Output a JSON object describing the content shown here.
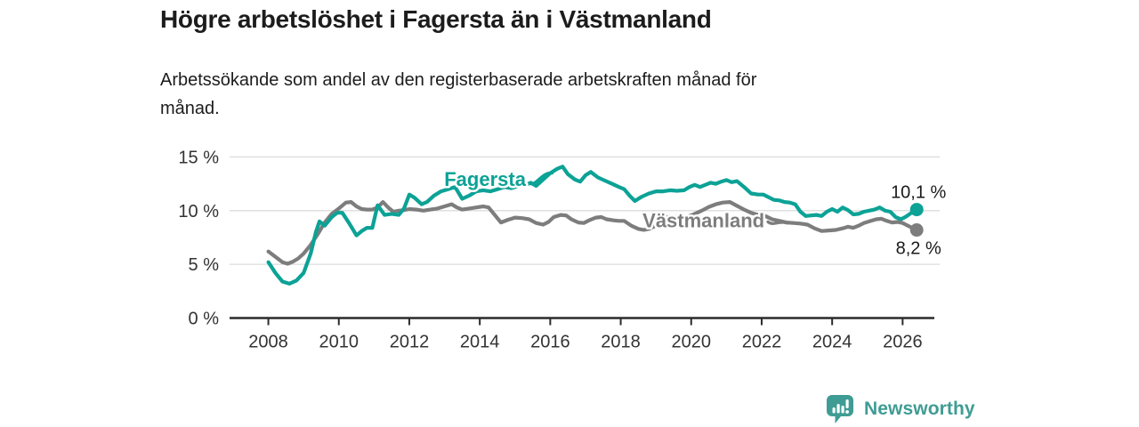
{
  "header": {
    "title": "Högre arbetslöshet i Fagersta än i Västmanland",
    "subtitle": "Arbetssökande som andel av den registerbaserade arbetskraften månad för månad.",
    "subtitle_lines": [
      "Arbetssökande som andel av den registerbaserade arbetskraften månad för",
      "månad."
    ]
  },
  "footer": {
    "brand": "Newsworthy",
    "brand_color": "#3f9c94",
    "logo_icon": "bar-chart-speech-bubble-icon"
  },
  "colors": {
    "fagersta": "#0ca296",
    "vastmanland": "#7d7d7d",
    "grid": "#dcdcdc",
    "axis": "#2b2b2b",
    "tick_text": "#333333",
    "end_label_text": "#1a1a1a",
    "background": "#ffffff"
  },
  "chart_data": {
    "type": "line",
    "title": "Högre arbetslöshet i Fagersta än i Västmanland",
    "subtitle": "Arbetssökande som andel av den registerbaserade arbetskraften månad för månad.",
    "xlabel": "",
    "ylabel": "",
    "unit": "%",
    "grid": "horizontal",
    "legend_position": "inline-labels",
    "xlim": [
      2006.9,
      2026.9
    ],
    "ylim": [
      0,
      15
    ],
    "x_ticks": [
      2008,
      2010,
      2012,
      2014,
      2016,
      2018,
      2020,
      2022,
      2024,
      2026
    ],
    "y_ticks": [
      {
        "value": 0,
        "label": "0 %"
      },
      {
        "value": 5,
        "label": "5 %"
      },
      {
        "value": 10,
        "label": "10 %"
      },
      {
        "value": 15,
        "label": "15 %"
      }
    ],
    "series": [
      {
        "name": "Västmanland",
        "color": "#7d7d7d",
        "end_value": 8.2,
        "end_label": "8,2 %",
        "end_label_side": "below",
        "inline_label": {
          "x": 2020.35,
          "y": 9.1
        },
        "connector": {
          "from": [
            2022.18,
            8.95
          ],
          "c1": [
            2022.33,
            8.55
          ],
          "c2": [
            2022.5,
            9.1
          ],
          "to": [
            2022.72,
            8.85
          ]
        },
        "points": [
          [
            2008.0,
            6.2
          ],
          [
            2008.2,
            5.7
          ],
          [
            2008.4,
            5.2
          ],
          [
            2008.55,
            5.05
          ],
          [
            2008.7,
            5.25
          ],
          [
            2008.85,
            5.55
          ],
          [
            2009.0,
            6.0
          ],
          [
            2009.2,
            6.8
          ],
          [
            2009.4,
            7.8
          ],
          [
            2009.6,
            8.9
          ],
          [
            2009.8,
            9.7
          ],
          [
            2010.0,
            10.2
          ],
          [
            2010.2,
            10.75
          ],
          [
            2010.35,
            10.8
          ],
          [
            2010.5,
            10.4
          ],
          [
            2010.65,
            10.15
          ],
          [
            2010.8,
            10.1
          ],
          [
            2010.95,
            10.1
          ],
          [
            2011.1,
            10.3
          ],
          [
            2011.25,
            10.8
          ],
          [
            2011.4,
            10.3
          ],
          [
            2011.55,
            9.9
          ],
          [
            2011.7,
            10.0
          ],
          [
            2011.85,
            10.05
          ],
          [
            2012.0,
            10.15
          ],
          [
            2012.2,
            10.1
          ],
          [
            2012.4,
            10.0
          ],
          [
            2012.6,
            10.1
          ],
          [
            2012.8,
            10.2
          ],
          [
            2013.0,
            10.4
          ],
          [
            2013.2,
            10.6
          ],
          [
            2013.35,
            10.3
          ],
          [
            2013.5,
            10.1
          ],
          [
            2013.7,
            10.2
          ],
          [
            2013.9,
            10.3
          ],
          [
            2014.1,
            10.4
          ],
          [
            2014.25,
            10.3
          ],
          [
            2014.4,
            9.7
          ],
          [
            2014.6,
            8.9
          ],
          [
            2014.8,
            9.15
          ],
          [
            2015.0,
            9.35
          ],
          [
            2015.2,
            9.3
          ],
          [
            2015.4,
            9.2
          ],
          [
            2015.6,
            8.85
          ],
          [
            2015.8,
            8.7
          ],
          [
            2015.95,
            8.95
          ],
          [
            2016.1,
            9.4
          ],
          [
            2016.3,
            9.6
          ],
          [
            2016.45,
            9.55
          ],
          [
            2016.6,
            9.2
          ],
          [
            2016.8,
            8.9
          ],
          [
            2016.95,
            8.85
          ],
          [
            2017.1,
            9.1
          ],
          [
            2017.3,
            9.35
          ],
          [
            2017.45,
            9.4
          ],
          [
            2017.6,
            9.2
          ],
          [
            2017.8,
            9.1
          ],
          [
            2017.95,
            9.05
          ],
          [
            2018.1,
            9.05
          ],
          [
            2018.3,
            8.6
          ],
          [
            2018.5,
            8.3
          ],
          [
            2018.65,
            8.2
          ],
          [
            2018.8,
            8.3
          ],
          [
            2019.0,
            8.6
          ],
          [
            2019.2,
            9.3
          ],
          [
            2019.4,
            9.45
          ],
          [
            2019.6,
            9.4
          ],
          [
            2019.8,
            9.4
          ],
          [
            2019.95,
            9.5
          ],
          [
            2020.1,
            9.7
          ],
          [
            2020.3,
            10.0
          ],
          [
            2020.5,
            10.35
          ],
          [
            2020.7,
            10.6
          ],
          [
            2020.9,
            10.75
          ],
          [
            2021.1,
            10.8
          ],
          [
            2021.3,
            10.45
          ],
          [
            2021.5,
            10.1
          ],
          [
            2021.7,
            9.8
          ],
          [
            2021.9,
            9.6
          ],
          [
            2022.1,
            9.5
          ],
          [
            2022.3,
            9.2
          ],
          [
            2022.5,
            9.05
          ],
          [
            2022.7,
            8.9
          ],
          [
            2022.9,
            8.85
          ],
          [
            2023.1,
            8.8
          ],
          [
            2023.3,
            8.7
          ],
          [
            2023.5,
            8.35
          ],
          [
            2023.7,
            8.1
          ],
          [
            2023.9,
            8.15
          ],
          [
            2024.1,
            8.2
          ],
          [
            2024.3,
            8.35
          ],
          [
            2024.45,
            8.5
          ],
          [
            2024.6,
            8.4
          ],
          [
            2024.75,
            8.6
          ],
          [
            2024.9,
            8.85
          ],
          [
            2025.1,
            9.05
          ],
          [
            2025.25,
            9.2
          ],
          [
            2025.4,
            9.25
          ],
          [
            2025.55,
            9.05
          ],
          [
            2025.7,
            8.9
          ],
          [
            2025.85,
            8.95
          ],
          [
            2026.0,
            8.85
          ],
          [
            2026.15,
            8.6
          ],
          [
            2026.4,
            8.2
          ]
        ]
      },
      {
        "name": "Fagersta",
        "color": "#0ca296",
        "end_value": 10.1,
        "end_label": "10,1 %",
        "end_label_side": "above",
        "inline_label": {
          "x": 2014.15,
          "y": 12.95
        },
        "connector": {
          "from": [
            2015.4,
            12.55
          ],
          "c1": [
            2015.6,
            12.2
          ],
          "c2": [
            2015.75,
            13.6
          ],
          "to": [
            2016.05,
            13.5
          ]
        },
        "points": [
          [
            2008.0,
            5.2
          ],
          [
            2008.2,
            4.2
          ],
          [
            2008.4,
            3.4
          ],
          [
            2008.6,
            3.2
          ],
          [
            2008.8,
            3.5
          ],
          [
            2009.0,
            4.2
          ],
          [
            2009.2,
            6.0
          ],
          [
            2009.35,
            8.0
          ],
          [
            2009.45,
            9.0
          ],
          [
            2009.6,
            8.6
          ],
          [
            2009.8,
            9.4
          ],
          [
            2009.95,
            9.8
          ],
          [
            2010.1,
            9.8
          ],
          [
            2010.3,
            8.8
          ],
          [
            2010.5,
            7.7
          ],
          [
            2010.65,
            8.1
          ],
          [
            2010.8,
            8.4
          ],
          [
            2010.95,
            8.4
          ],
          [
            2011.1,
            10.5
          ],
          [
            2011.3,
            9.6
          ],
          [
            2011.5,
            9.7
          ],
          [
            2011.7,
            9.6
          ],
          [
            2011.85,
            10.2
          ],
          [
            2012.0,
            11.5
          ],
          [
            2012.15,
            11.2
          ],
          [
            2012.35,
            10.6
          ],
          [
            2012.5,
            10.8
          ],
          [
            2012.7,
            11.4
          ],
          [
            2012.9,
            11.8
          ],
          [
            2013.1,
            12.0
          ],
          [
            2013.3,
            12.2
          ],
          [
            2013.5,
            11.1
          ],
          [
            2013.7,
            11.4
          ],
          [
            2013.9,
            11.8
          ],
          [
            2014.1,
            11.9
          ],
          [
            2014.3,
            11.8
          ],
          [
            2014.5,
            12.0
          ],
          [
            2014.7,
            12.2
          ],
          [
            2014.9,
            12.1
          ],
          [
            2015.1,
            12.3
          ],
          [
            2015.3,
            12.4
          ],
          [
            2015.45,
            12.6
          ],
          [
            2015.6,
            12.3
          ],
          [
            2015.8,
            12.9
          ],
          [
            2016.0,
            13.5
          ],
          [
            2016.2,
            13.9
          ],
          [
            2016.35,
            14.1
          ],
          [
            2016.5,
            13.4
          ],
          [
            2016.7,
            12.9
          ],
          [
            2016.85,
            12.7
          ],
          [
            2017.0,
            13.3
          ],
          [
            2017.15,
            13.6
          ],
          [
            2017.35,
            13.1
          ],
          [
            2017.55,
            12.8
          ],
          [
            2017.75,
            12.5
          ],
          [
            2017.95,
            12.2
          ],
          [
            2018.1,
            12.0
          ],
          [
            2018.25,
            11.4
          ],
          [
            2018.4,
            10.9
          ],
          [
            2018.6,
            11.3
          ],
          [
            2018.8,
            11.6
          ],
          [
            2019.0,
            11.8
          ],
          [
            2019.2,
            11.8
          ],
          [
            2019.4,
            11.9
          ],
          [
            2019.6,
            11.85
          ],
          [
            2019.8,
            11.9
          ],
          [
            2019.95,
            12.2
          ],
          [
            2020.1,
            12.4
          ],
          [
            2020.25,
            12.2
          ],
          [
            2020.4,
            12.4
          ],
          [
            2020.55,
            12.6
          ],
          [
            2020.7,
            12.5
          ],
          [
            2020.85,
            12.7
          ],
          [
            2021.0,
            12.85
          ],
          [
            2021.15,
            12.65
          ],
          [
            2021.3,
            12.75
          ],
          [
            2021.5,
            12.2
          ],
          [
            2021.7,
            11.6
          ],
          [
            2021.9,
            11.5
          ],
          [
            2022.05,
            11.5
          ],
          [
            2022.2,
            11.25
          ],
          [
            2022.35,
            11.0
          ],
          [
            2022.5,
            10.95
          ],
          [
            2022.65,
            10.8
          ],
          [
            2022.8,
            10.75
          ],
          [
            2022.95,
            10.6
          ],
          [
            2023.1,
            9.9
          ],
          [
            2023.25,
            9.5
          ],
          [
            2023.4,
            9.55
          ],
          [
            2023.55,
            9.6
          ],
          [
            2023.7,
            9.5
          ],
          [
            2023.85,
            9.9
          ],
          [
            2024.0,
            10.15
          ],
          [
            2024.15,
            9.9
          ],
          [
            2024.3,
            10.3
          ],
          [
            2024.45,
            10.05
          ],
          [
            2024.6,
            9.65
          ],
          [
            2024.75,
            9.7
          ],
          [
            2024.9,
            9.9
          ],
          [
            2025.05,
            10.0
          ],
          [
            2025.2,
            10.1
          ],
          [
            2025.35,
            10.3
          ],
          [
            2025.5,
            10.0
          ],
          [
            2025.65,
            9.9
          ],
          [
            2025.8,
            9.4
          ],
          [
            2025.95,
            9.2
          ],
          [
            2026.1,
            9.45
          ],
          [
            2026.25,
            9.8
          ],
          [
            2026.4,
            10.1
          ]
        ]
      }
    ]
  }
}
